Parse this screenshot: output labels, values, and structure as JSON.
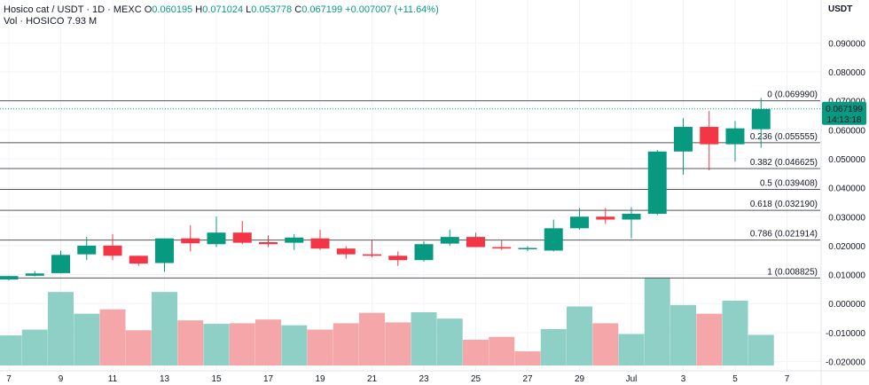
{
  "header": {
    "symbol": "Hosico cat / USDT · 1D · MEXC",
    "open_label": "O",
    "open": "0.060195",
    "high_label": "H",
    "high": "0.071024",
    "low_label": "L",
    "low": "0.053778",
    "close_label": "C",
    "close": "0.067199",
    "change": "+0.007007 (+11.64%)",
    "vol_label": "Vol · HOSICO",
    "vol_value": "7.93 M"
  },
  "axis": {
    "unit": "USDT"
  },
  "price_marker": {
    "price": "0.067199",
    "countdown": "14:13:18"
  },
  "colors": {
    "up": "#089981",
    "down": "#f23645",
    "vol_up": "#8fd0c6",
    "vol_down": "#f5a6a9",
    "fib_line": "#555555",
    "grid": "#f0f3fa"
  },
  "chart_data": {
    "type": "candlestick",
    "price_axis": {
      "min": 0.0,
      "max": 0.097,
      "ticks": [
        "0.090000",
        "0.080000",
        "0.070000",
        "0.060000",
        "0.050000",
        "0.040000",
        "0.030000",
        "0.020000",
        "0.010000"
      ]
    },
    "volume_axis": {
      "min": -0.023,
      "max": 0.0095,
      "ticks": [
        "0.000000",
        "-0.010000",
        "-0.020000"
      ]
    },
    "x_ticks": [
      {
        "label": "7",
        "i": 0
      },
      {
        "label": "9",
        "i": 2
      },
      {
        "label": "11",
        "i": 4
      },
      {
        "label": "13",
        "i": 6
      },
      {
        "label": "15",
        "i": 8
      },
      {
        "label": "17",
        "i": 10
      },
      {
        "label": "19",
        "i": 12
      },
      {
        "label": "21",
        "i": 14
      },
      {
        "label": "23",
        "i": 16
      },
      {
        "label": "25",
        "i": 18
      },
      {
        "label": "27",
        "i": 20
      },
      {
        "label": "29",
        "i": 22
      },
      {
        "label": "Jul",
        "i": 24
      },
      {
        "label": "3",
        "i": 26
      },
      {
        "label": "5",
        "i": 28
      },
      {
        "label": "7",
        "i": 30
      }
    ],
    "candles": [
      {
        "o": 0.0083,
        "h": 0.0096,
        "l": 0.008,
        "c": 0.0095
      },
      {
        "o": 0.0096,
        "h": 0.0112,
        "l": 0.0094,
        "c": 0.0104
      },
      {
        "o": 0.0105,
        "h": 0.0183,
        "l": 0.0104,
        "c": 0.0168
      },
      {
        "o": 0.017,
        "h": 0.023,
        "l": 0.015,
        "c": 0.02
      },
      {
        "o": 0.02,
        "h": 0.024,
        "l": 0.015,
        "c": 0.0165
      },
      {
        "o": 0.0165,
        "h": 0.0165,
        "l": 0.013,
        "c": 0.0138
      },
      {
        "o": 0.014,
        "h": 0.0225,
        "l": 0.011,
        "c": 0.0225
      },
      {
        "o": 0.0225,
        "h": 0.027,
        "l": 0.018,
        "c": 0.0208
      },
      {
        "o": 0.0205,
        "h": 0.03,
        "l": 0.0195,
        "c": 0.0245
      },
      {
        "o": 0.0245,
        "h": 0.0285,
        "l": 0.0205,
        "c": 0.021
      },
      {
        "o": 0.0212,
        "h": 0.0235,
        "l": 0.0195,
        "c": 0.0205
      },
      {
        "o": 0.021,
        "h": 0.024,
        "l": 0.0185,
        "c": 0.0228
      },
      {
        "o": 0.0225,
        "h": 0.0255,
        "l": 0.0185,
        "c": 0.019
      },
      {
        "o": 0.019,
        "h": 0.0198,
        "l": 0.0155,
        "c": 0.017
      },
      {
        "o": 0.017,
        "h": 0.0218,
        "l": 0.016,
        "c": 0.0165
      },
      {
        "o": 0.0165,
        "h": 0.018,
        "l": 0.013,
        "c": 0.015
      },
      {
        "o": 0.015,
        "h": 0.0215,
        "l": 0.0145,
        "c": 0.0205
      },
      {
        "o": 0.0207,
        "h": 0.0255,
        "l": 0.02,
        "c": 0.023
      },
      {
        "o": 0.023,
        "h": 0.0245,
        "l": 0.0195,
        "c": 0.0195
      },
      {
        "o": 0.0195,
        "h": 0.0218,
        "l": 0.0185,
        "c": 0.019
      },
      {
        "o": 0.019,
        "h": 0.0198,
        "l": 0.018,
        "c": 0.0192
      },
      {
        "o": 0.0183,
        "h": 0.029,
        "l": 0.018,
        "c": 0.026
      },
      {
        "o": 0.026,
        "h": 0.033,
        "l": 0.0255,
        "c": 0.03
      },
      {
        "o": 0.03,
        "h": 0.033,
        "l": 0.0275,
        "c": 0.029
      },
      {
        "o": 0.029,
        "h": 0.0333,
        "l": 0.0225,
        "c": 0.031
      },
      {
        "o": 0.031,
        "h": 0.053,
        "l": 0.0305,
        "c": 0.0525
      },
      {
        "o": 0.0525,
        "h": 0.064,
        "l": 0.0445,
        "c": 0.061
      },
      {
        "o": 0.061,
        "h": 0.0665,
        "l": 0.046,
        "c": 0.055
      },
      {
        "o": 0.055,
        "h": 0.063,
        "l": 0.049,
        "c": 0.0605
      },
      {
        "o": 0.0602,
        "h": 0.071,
        "l": 0.0538,
        "c": 0.0672
      }
    ],
    "volumes": [
      {
        "v": -0.011,
        "up": true
      },
      {
        "v": -0.009,
        "up": true
      },
      {
        "v": 0.004,
        "up": true
      },
      {
        "v": -0.0035,
        "up": true
      },
      {
        "v": -0.002,
        "up": false
      },
      {
        "v": -0.0092,
        "up": false
      },
      {
        "v": 0.004,
        "up": true
      },
      {
        "v": -0.0058,
        "up": false
      },
      {
        "v": -0.007,
        "up": true
      },
      {
        "v": -0.0068,
        "up": false
      },
      {
        "v": -0.0055,
        "up": false
      },
      {
        "v": -0.0075,
        "up": true
      },
      {
        "v": -0.009,
        "up": false
      },
      {
        "v": -0.0068,
        "up": false
      },
      {
        "v": -0.0032,
        "up": false
      },
      {
        "v": -0.0065,
        "up": false
      },
      {
        "v": -0.003,
        "up": true
      },
      {
        "v": -0.0052,
        "up": true
      },
      {
        "v": -0.0125,
        "up": false
      },
      {
        "v": -0.0115,
        "up": false
      },
      {
        "v": -0.0165,
        "up": false
      },
      {
        "v": -0.0088,
        "up": true
      },
      {
        "v": -0.001,
        "up": true
      },
      {
        "v": -0.0068,
        "up": false
      },
      {
        "v": -0.0105,
        "up": true
      },
      {
        "v": 0.009,
        "up": true
      },
      {
        "v": -0.0005,
        "up": true
      },
      {
        "v": -0.0035,
        "up": false
      },
      {
        "v": 0.001,
        "up": true
      },
      {
        "v": -0.0108,
        "up": true
      }
    ],
    "fib_levels": [
      {
        "label": "0 (0.069990)",
        "price": 0.06999
      },
      {
        "label": "0.236 (0.055555)",
        "price": 0.055555
      },
      {
        "label": "0.382 (0.046625)",
        "price": 0.046625
      },
      {
        "label": "0.5 (0.039408)",
        "price": 0.039408
      },
      {
        "label": "0.618 (0.032190)",
        "price": 0.03219
      },
      {
        "label": "0.786 (0.021914)",
        "price": 0.021914
      },
      {
        "label": "1 (0.008825)",
        "price": 0.008825
      }
    ],
    "grid": true
  }
}
